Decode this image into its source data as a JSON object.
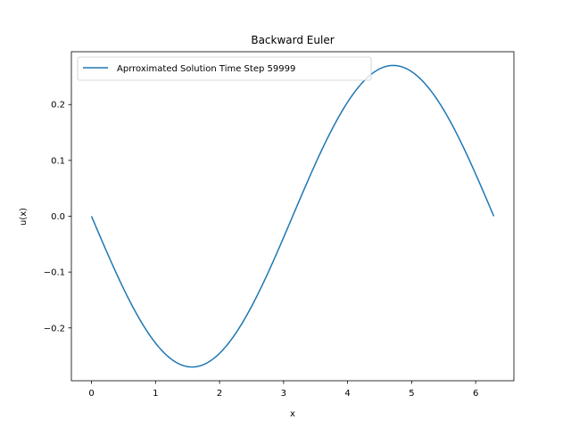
{
  "chart_data": {
    "type": "line",
    "title": "Backward Euler",
    "xlabel": "x",
    "ylabel": "u(x)",
    "xlim": [
      -0.314,
      6.597
    ],
    "ylim": [
      -0.2946,
      0.2946
    ],
    "xticks": [
      0,
      1,
      2,
      3,
      4,
      5,
      6
    ],
    "xtick_labels": [
      "0",
      "1",
      "2",
      "3",
      "4",
      "5",
      "6"
    ],
    "yticks": [
      -0.2,
      -0.1,
      0.0,
      0.1,
      0.2
    ],
    "ytick_labels": [
      "−0.2",
      "−0.1",
      "0.0",
      "0.1",
      "0.2"
    ],
    "grid": false,
    "legend_position": "upper-left",
    "series": [
      {
        "name": "Aprroximated Solution Time Step 59999",
        "color": "#1f77b4",
        "function": "-0.27*sin(x)",
        "x_range": [
          0,
          6.2832
        ],
        "x": [
          0.0,
          0.5236,
          1.0472,
          1.5708,
          2.0944,
          2.618,
          3.1416,
          3.6652,
          4.1888,
          4.7124,
          5.236,
          5.7596,
          6.2832
        ],
        "y": [
          0.0,
          -0.135,
          -0.2338,
          -0.27,
          -0.2338,
          -0.135,
          0.0,
          0.135,
          0.2338,
          0.27,
          0.2338,
          0.135,
          0.0
        ]
      }
    ]
  }
}
